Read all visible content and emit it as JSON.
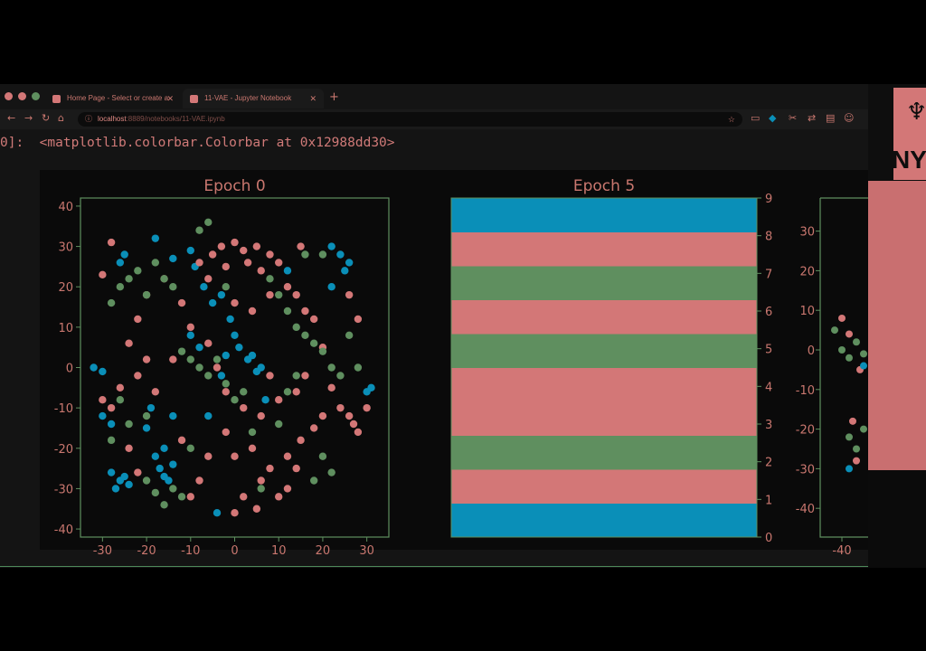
{
  "browser": {
    "tabs": [
      {
        "label": "Home Page - Select or create a",
        "active": false
      },
      {
        "label": "11-VAE - Jupyter Notebook",
        "active": true
      }
    ],
    "url_host": "localhost",
    "url_path": ":8889/notebooks/11-VAE.ipynb"
  },
  "output": {
    "prompt": "0]:",
    "text": "<matplotlib.colorbar.Colorbar at 0x12988dd30>"
  },
  "side": {
    "logo_text": "NY"
  },
  "colors": {
    "blue": "#0a8fb8",
    "pink": "#d37777",
    "green": "#5f8f5f",
    "text": "#c9776f",
    "frame": "#5f8f5f"
  },
  "chart_data": [
    {
      "type": "scatter",
      "title": "Epoch 0",
      "xlim": [
        -35,
        35
      ],
      "ylim": [
        -42,
        42
      ],
      "xticks": [
        -30,
        -20,
        -10,
        0,
        10,
        20,
        30
      ],
      "yticks": [
        -40,
        -30,
        -20,
        -10,
        0,
        10,
        20,
        30,
        40
      ],
      "series": [
        {
          "color": "blue",
          "points": [
            [
              -26,
              -28
            ],
            [
              -25,
              -27
            ],
            [
              -24,
              -29
            ],
            [
              -27,
              -30
            ],
            [
              -28,
              -26
            ],
            [
              -17,
              -25
            ],
            [
              -16,
              -27
            ],
            [
              -15,
              -28
            ],
            [
              -14,
              -24
            ],
            [
              -18,
              -22
            ],
            [
              -16,
              -20
            ],
            [
              -20,
              -15
            ],
            [
              -19,
              -10
            ],
            [
              -14,
              -12
            ],
            [
              -3,
              -2
            ],
            [
              -2,
              3
            ],
            [
              1,
              5
            ],
            [
              3,
              2
            ],
            [
              5,
              -1
            ],
            [
              6,
              0
            ],
            [
              4,
              3
            ],
            [
              0,
              8
            ],
            [
              -1,
              12
            ],
            [
              -3,
              18
            ],
            [
              -7,
              20
            ],
            [
              -9,
              25
            ],
            [
              -10,
              29
            ],
            [
              -14,
              27
            ],
            [
              -18,
              32
            ],
            [
              -25,
              28
            ],
            [
              -26,
              26
            ],
            [
              -30,
              -1
            ],
            [
              -32,
              0
            ],
            [
              -30,
              -12
            ],
            [
              -28,
              -14
            ],
            [
              22,
              30
            ],
            [
              24,
              28
            ],
            [
              25,
              24
            ],
            [
              26,
              26
            ],
            [
              22,
              20
            ],
            [
              12,
              24
            ],
            [
              7,
              -8
            ],
            [
              -6,
              -12
            ],
            [
              -8,
              5
            ],
            [
              -10,
              8
            ],
            [
              -5,
              16
            ],
            [
              30,
              -6
            ],
            [
              31,
              -5
            ],
            [
              -4,
              -36
            ]
          ]
        },
        {
          "color": "pink",
          "points": [
            [
              -5,
              28
            ],
            [
              -3,
              30
            ],
            [
              0,
              31
            ],
            [
              2,
              29
            ],
            [
              5,
              30
            ],
            [
              8,
              28
            ],
            [
              3,
              26
            ],
            [
              -2,
              25
            ],
            [
              6,
              24
            ],
            [
              10,
              26
            ],
            [
              -8,
              26
            ],
            [
              -6,
              22
            ],
            [
              12,
              20
            ],
            [
              14,
              18
            ],
            [
              16,
              14
            ],
            [
              18,
              12
            ],
            [
              20,
              5
            ],
            [
              22,
              -5
            ],
            [
              20,
              -12
            ],
            [
              18,
              -15
            ],
            [
              15,
              -18
            ],
            [
              12,
              -22
            ],
            [
              8,
              -25
            ],
            [
              6,
              -28
            ],
            [
              2,
              -32
            ],
            [
              5,
              -35
            ],
            [
              0,
              -36
            ],
            [
              10,
              -32
            ],
            [
              12,
              -30
            ],
            [
              14,
              -25
            ],
            [
              24,
              -10
            ],
            [
              26,
              -12
            ],
            [
              27,
              -14
            ],
            [
              28,
              -16
            ],
            [
              -30,
              -8
            ],
            [
              -28,
              -10
            ],
            [
              -26,
              -5
            ],
            [
              -22,
              -2
            ],
            [
              -20,
              2
            ],
            [
              -24,
              6
            ],
            [
              -22,
              12
            ],
            [
              -20,
              18
            ],
            [
              -16,
              22
            ],
            [
              -12,
              16
            ],
            [
              -10,
              10
            ],
            [
              -6,
              6
            ],
            [
              -4,
              0
            ],
            [
              -2,
              -6
            ],
            [
              2,
              -10
            ],
            [
              6,
              -12
            ],
            [
              10,
              -8
            ],
            [
              4,
              -20
            ],
            [
              -2,
              -16
            ],
            [
              -6,
              -22
            ],
            [
              -8,
              -28
            ],
            [
              -10,
              -32
            ],
            [
              30,
              -10
            ],
            [
              28,
              12
            ],
            [
              26,
              18
            ],
            [
              15,
              30
            ],
            [
              -28,
              31
            ],
            [
              -30,
              23
            ],
            [
              -24,
              -20
            ],
            [
              -22,
              -26
            ],
            [
              -12,
              -18
            ],
            [
              0,
              -22
            ],
            [
              8,
              -2
            ],
            [
              14,
              -6
            ],
            [
              16,
              -2
            ],
            [
              4,
              14
            ],
            [
              -14,
              2
            ],
            [
              -18,
              -6
            ],
            [
              8,
              18
            ],
            [
              0,
              16
            ]
          ]
        },
        {
          "color": "green",
          "points": [
            [
              -28,
              16
            ],
            [
              -26,
              20
            ],
            [
              -24,
              22
            ],
            [
              -22,
              24
            ],
            [
              -20,
              18
            ],
            [
              -18,
              26
            ],
            [
              -16,
              22
            ],
            [
              -14,
              20
            ],
            [
              -12,
              4
            ],
            [
              -10,
              2
            ],
            [
              -8,
              0
            ],
            [
              -6,
              -2
            ],
            [
              -4,
              2
            ],
            [
              -2,
              -4
            ],
            [
              0,
              -8
            ],
            [
              2,
              -6
            ],
            [
              -14,
              -30
            ],
            [
              -12,
              -32
            ],
            [
              -16,
              -34
            ],
            [
              -18,
              -31
            ],
            [
              -20,
              -28
            ],
            [
              8,
              22
            ],
            [
              10,
              18
            ],
            [
              12,
              14
            ],
            [
              14,
              10
            ],
            [
              16,
              8
            ],
            [
              18,
              6
            ],
            [
              20,
              4
            ],
            [
              22,
              0
            ],
            [
              24,
              -2
            ],
            [
              26,
              8
            ],
            [
              14,
              -2
            ],
            [
              12,
              -6
            ],
            [
              10,
              -14
            ],
            [
              20,
              -22
            ],
            [
              22,
              -26
            ],
            [
              18,
              -28
            ],
            [
              -6,
              36
            ],
            [
              -8,
              34
            ],
            [
              -2,
              20
            ],
            [
              -24,
              -14
            ],
            [
              -26,
              -8
            ],
            [
              -28,
              -18
            ],
            [
              16,
              28
            ],
            [
              20,
              28
            ],
            [
              -20,
              -12
            ],
            [
              -10,
              -20
            ],
            [
              4,
              -16
            ],
            [
              6,
              -30
            ],
            [
              28,
              0
            ]
          ]
        }
      ]
    },
    {
      "type": "heatmap",
      "title": "Epoch 5",
      "colorbar_ticks": [
        0,
        1,
        2,
        3,
        4,
        5,
        6,
        7,
        8,
        9
      ],
      "bands": [
        "blue",
        "pink",
        "green",
        "pink",
        "pink",
        "green",
        "pink",
        "green",
        "pink",
        "blue"
      ]
    },
    {
      "type": "scatter",
      "title": "",
      "xticks": [
        -40
      ],
      "yticks": [
        30,
        20,
        10,
        0,
        -10,
        -20,
        -30,
        -40
      ],
      "series": [
        {
          "color": "green",
          "points": [
            [
              -42,
              5
            ],
            [
              -40,
              0
            ],
            [
              -38,
              -2
            ],
            [
              -36,
              2
            ],
            [
              -34,
              -1
            ],
            [
              -38,
              -22
            ],
            [
              -36,
              -25
            ],
            [
              -34,
              -20
            ]
          ]
        },
        {
          "color": "pink",
          "points": [
            [
              -40,
              8
            ],
            [
              -38,
              4
            ],
            [
              -35,
              -5
            ],
            [
              -37,
              -18
            ],
            [
              -36,
              -28
            ]
          ]
        },
        {
          "color": "blue",
          "points": [
            [
              -38,
              -30
            ],
            [
              -34,
              -4
            ]
          ]
        }
      ]
    }
  ]
}
